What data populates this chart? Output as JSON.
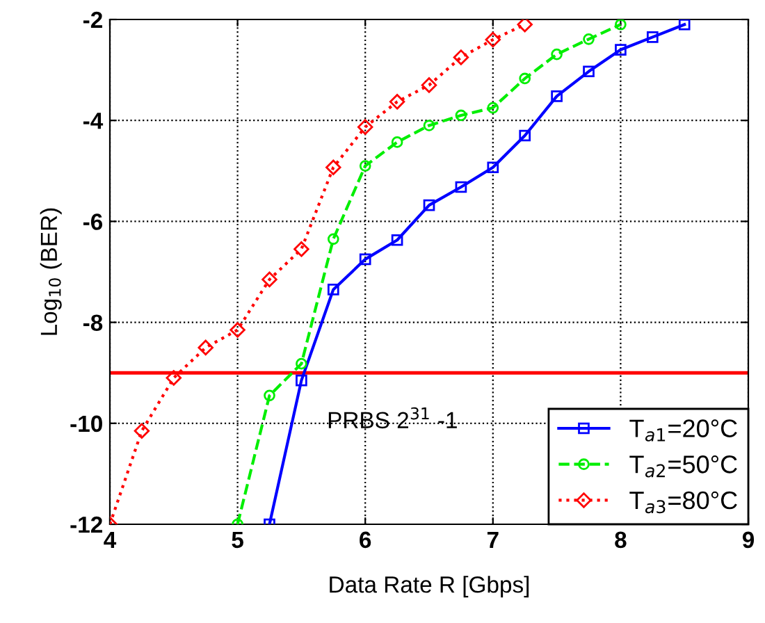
{
  "chart_data": {
    "type": "line",
    "xlabel": "Data Rate R [Gbps]",
    "ylabel": "Log$_{10}$ (BER)",
    "xlim": [
      4,
      9
    ],
    "ylim": [
      -12,
      -2
    ],
    "xticks": [
      4,
      5,
      6,
      7,
      8,
      9
    ],
    "yticks": [
      -12,
      -10,
      -8,
      -6,
      -4,
      -2
    ],
    "grid": true,
    "legend": "bottom right",
    "annotations": [
      "PRBS 2$^{31}$ -1"
    ],
    "ref_lines": [
      {
        "axis": "y",
        "value": -9,
        "color": "#ff0000"
      }
    ],
    "series": [
      {
        "name": "T$_{a1}$=20°C",
        "color": "#0000ff",
        "marker": "square",
        "line_style": "solid",
        "x": [
          5.25,
          5.5,
          5.75,
          6,
          6.25,
          6.5,
          6.75,
          7,
          7.25,
          7.5,
          7.75,
          8,
          8.25,
          8.5
        ],
        "values": [
          -12,
          -9.15,
          -7.35,
          -6.75,
          -6.37,
          -5.68,
          -5.32,
          -4.93,
          -4.3,
          -3.52,
          -3.03,
          -2.6,
          -2.35,
          -2.1
        ]
      },
      {
        "name": "T$_{a2}$=50°C",
        "color": "#00ee00",
        "marker": "circle",
        "line_style": "dashed",
        "x": [
          5,
          5.25,
          5.5,
          5.75,
          6,
          6.25,
          6.5,
          6.75,
          7,
          7.25,
          7.5,
          7.75,
          8
        ],
        "values": [
          -12,
          -9.45,
          -8.82,
          -6.35,
          -4.9,
          -4.43,
          -4.1,
          -3.9,
          -3.75,
          -3.17,
          -2.69,
          -2.39,
          -2.1
        ]
      },
      {
        "name": "T$_{a3}$=80°C",
        "color": "#ff0000",
        "marker": "diamond",
        "line_style": "dotted",
        "x": [
          4,
          4.25,
          4.5,
          4.75,
          5,
          5.25,
          5.5,
          5.75,
          6,
          6.25,
          6.5,
          6.75,
          7,
          7.25
        ],
        "values": [
          -12,
          -10.15,
          -9.1,
          -8.5,
          -8.15,
          -7.15,
          -6.55,
          -4.93,
          -4.13,
          -3.63,
          -3.3,
          -2.75,
          -2.4,
          -2.1
        ]
      }
    ]
  }
}
